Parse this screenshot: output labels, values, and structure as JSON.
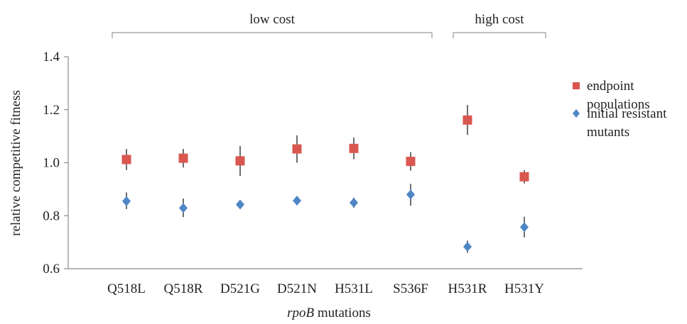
{
  "chart_data": {
    "type": "scatter",
    "categories": [
      "Q518L",
      "Q518R",
      "D521G",
      "D521N",
      "H531L",
      "S536F",
      "H531R",
      "H531Y"
    ],
    "series": [
      {
        "name": "endpoint populations",
        "marker": "square",
        "color": "#d9574f",
        "values": [
          1.012,
          1.017,
          1.007,
          1.052,
          1.054,
          1.005,
          1.161,
          0.947
        ],
        "err_low": [
          0.972,
          0.982,
          0.95,
          1.0,
          1.013,
          0.97,
          1.105,
          0.922
        ],
        "err_high": [
          1.052,
          1.052,
          1.063,
          1.103,
          1.095,
          1.04,
          1.218,
          0.972
        ]
      },
      {
        "name": "initial resistant mutants",
        "marker": "diamond",
        "color": "#4f86c6",
        "values": [
          0.855,
          0.829,
          0.842,
          0.857,
          0.849,
          0.88,
          0.683,
          0.757
        ],
        "err_low": [
          0.825,
          0.795,
          0.842,
          0.857,
          0.83,
          0.838,
          0.66,
          0.718
        ],
        "err_high": [
          0.888,
          0.865,
          0.842,
          0.857,
          0.868,
          0.92,
          0.706,
          0.796
        ]
      }
    ],
    "ylabel": "relative competitive fitness",
    "xlabel_italic": "rpoB",
    "xlabel_rest": " mutations",
    "ylim": [
      0.6,
      1.4
    ],
    "yticks": [
      "0.6",
      "0.8",
      "1.0",
      "1.2",
      "1.4"
    ],
    "groups": [
      {
        "label": "low cost",
        "from": 0,
        "to": 5
      },
      {
        "label": "high cost",
        "from": 6,
        "to": 7
      }
    ],
    "legend_position": "right",
    "grid": false
  }
}
